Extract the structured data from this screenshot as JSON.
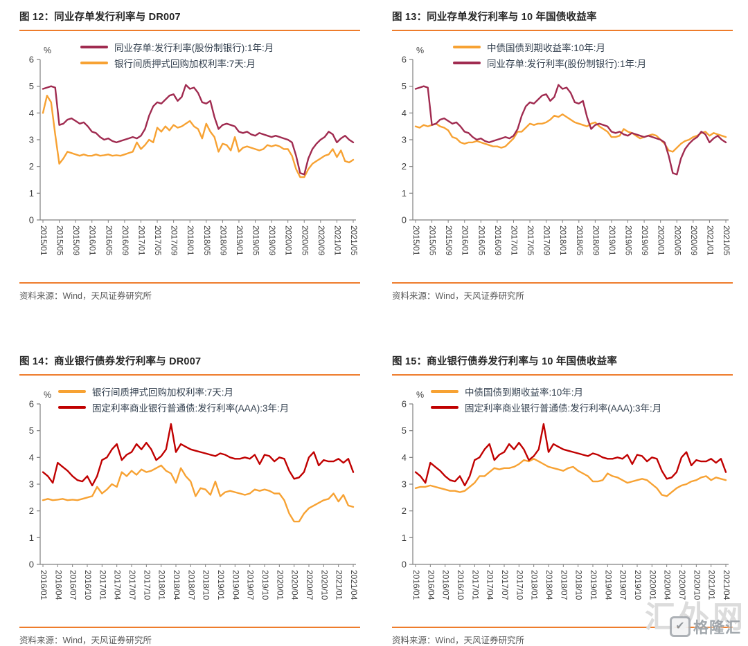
{
  "page": {
    "source_note": "资料来源：Wind，天风证券研究所",
    "watermark": {
      "site": "汇外网",
      "logo": "格隆汇"
    }
  },
  "colors": {
    "accent_orange": "#EE7C2B",
    "cd_dark_red": "#A02B50",
    "repo_orange": "#F7A233",
    "aaa_bright_red": "#C00000",
    "axis_line": "#808080",
    "axis_text": "#404040",
    "legend_text": "#33404F",
    "title_text": "#262626",
    "source_text": "#595959",
    "watermark_gray": "#DCDCDC"
  },
  "chart_data": [
    {
      "id": "fig12",
      "type": "line",
      "title": "图 12：同业存单发行利率与 DR007",
      "source": "资料来源：Wind，天风证券研究所",
      "ylabel": "%",
      "ylim": [
        0,
        6
      ],
      "yticks": [
        0,
        1,
        2,
        3,
        4,
        5,
        6
      ],
      "x_range": "2015/01-2021/05",
      "n_points": 77,
      "x_tick_interval_months": 4,
      "x_tick_labels": [
        "2015/01",
        "2015/05",
        "2015/09",
        "2016/01",
        "2016/05",
        "2016/09",
        "2017/01",
        "2017/05",
        "2017/09",
        "2018/01",
        "2018/05",
        "2018/09",
        "2019/01",
        "2019/05",
        "2019/09",
        "2020/01",
        "2020/05",
        "2020/09",
        "2021/01",
        "2021/05"
      ],
      "grid": false,
      "legend_position": "top-left",
      "series": [
        {
          "name": "同业存单:发行利率(股份制银行):1年:月",
          "color": "#A02B50",
          "z": 2,
          "values": [
            4.9,
            4.95,
            5.0,
            4.95,
            3.55,
            3.6,
            3.75,
            3.8,
            3.7,
            3.6,
            3.65,
            3.5,
            3.3,
            3.25,
            3.1,
            3.0,
            3.05,
            2.95,
            2.9,
            2.95,
            3.0,
            3.05,
            3.1,
            3.05,
            3.15,
            3.4,
            3.9,
            4.25,
            4.4,
            4.35,
            4.5,
            4.65,
            4.7,
            4.45,
            4.6,
            5.05,
            4.9,
            4.95,
            4.75,
            4.4,
            4.35,
            4.45,
            3.85,
            3.4,
            3.55,
            3.6,
            3.55,
            3.5,
            3.3,
            3.25,
            3.3,
            3.2,
            3.15,
            3.25,
            3.2,
            3.15,
            3.1,
            3.15,
            3.1,
            3.05,
            3.0,
            2.9,
            2.4,
            1.75,
            1.7,
            2.3,
            2.65,
            2.85,
            3.0,
            3.1,
            3.3,
            3.2,
            2.9,
            3.05,
            3.15,
            3.0,
            2.9
          ]
        },
        {
          "name": "银行间质押式回购加权利率:7天:月",
          "color": "#F7A233",
          "z": 1,
          "values": [
            4.0,
            4.65,
            4.4,
            3.2,
            2.1,
            2.3,
            2.55,
            2.5,
            2.45,
            2.4,
            2.45,
            2.4,
            2.4,
            2.45,
            2.4,
            2.42,
            2.45,
            2.4,
            2.42,
            2.4,
            2.45,
            2.5,
            2.55,
            2.9,
            2.65,
            2.8,
            3.0,
            2.9,
            3.45,
            3.3,
            3.5,
            3.35,
            3.55,
            3.45,
            3.5,
            3.6,
            3.7,
            3.5,
            3.4,
            3.05,
            3.6,
            3.3,
            3.1,
            2.55,
            2.85,
            2.8,
            2.6,
            3.1,
            2.55,
            2.7,
            2.75,
            2.7,
            2.65,
            2.6,
            2.65,
            2.8,
            2.75,
            2.8,
            2.75,
            2.65,
            2.65,
            2.4,
            1.9,
            1.6,
            1.6,
            1.9,
            2.1,
            2.2,
            2.3,
            2.4,
            2.45,
            2.65,
            2.35,
            2.6,
            2.2,
            2.15,
            2.25
          ]
        }
      ]
    },
    {
      "id": "fig13",
      "type": "line",
      "title": "图 13：同业存单发行利率与 10 年国债收益率",
      "source": "资料来源：Wind，天风证券研究所",
      "ylabel": "%",
      "ylim": [
        0,
        6
      ],
      "yticks": [
        0,
        1,
        2,
        3,
        4,
        5,
        6
      ],
      "x_range": "2015/01-2021/05",
      "n_points": 77,
      "x_tick_interval_months": 4,
      "x_tick_labels": [
        "2015/01",
        "2015/05",
        "2015/09",
        "2016/01",
        "2016/05",
        "2016/09",
        "2017/01",
        "2017/05",
        "2017/09",
        "2018/01",
        "2018/05",
        "2018/09",
        "2019/01",
        "2019/05",
        "2019/09",
        "2020/01",
        "2020/05",
        "2020/09",
        "2021/01",
        "2021/05"
      ],
      "grid": false,
      "legend_position": "top-left",
      "series": [
        {
          "name": "中债国债到期收益率:10年:月",
          "color": "#F7A233",
          "z": 1,
          "values": [
            3.5,
            3.45,
            3.55,
            3.5,
            3.55,
            3.6,
            3.5,
            3.45,
            3.35,
            3.1,
            3.05,
            2.9,
            2.85,
            2.9,
            2.9,
            2.95,
            2.9,
            2.85,
            2.8,
            2.75,
            2.75,
            2.7,
            2.75,
            2.9,
            3.05,
            3.3,
            3.3,
            3.45,
            3.6,
            3.55,
            3.6,
            3.6,
            3.65,
            3.75,
            3.9,
            3.85,
            3.95,
            3.85,
            3.75,
            3.65,
            3.6,
            3.55,
            3.5,
            3.6,
            3.65,
            3.5,
            3.4,
            3.3,
            3.1,
            3.1,
            3.15,
            3.4,
            3.3,
            3.25,
            3.15,
            3.05,
            3.1,
            3.15,
            3.2,
            3.15,
            3.0,
            2.85,
            2.6,
            2.55,
            2.7,
            2.85,
            2.95,
            3.0,
            3.1,
            3.15,
            3.25,
            3.3,
            3.15,
            3.25,
            3.2,
            3.15,
            3.1
          ]
        },
        {
          "name": "同业存单:发行利率(股份制银行):1年:月",
          "color": "#A02B50",
          "z": 2,
          "values": [
            4.9,
            4.95,
            5.0,
            4.95,
            3.55,
            3.6,
            3.75,
            3.8,
            3.7,
            3.6,
            3.65,
            3.5,
            3.3,
            3.25,
            3.1,
            3.0,
            3.05,
            2.95,
            2.9,
            2.95,
            3.0,
            3.05,
            3.1,
            3.05,
            3.15,
            3.4,
            3.9,
            4.25,
            4.4,
            4.35,
            4.5,
            4.65,
            4.7,
            4.45,
            4.6,
            5.05,
            4.9,
            4.95,
            4.75,
            4.4,
            4.35,
            4.45,
            3.85,
            3.4,
            3.55,
            3.6,
            3.55,
            3.5,
            3.3,
            3.25,
            3.3,
            3.2,
            3.15,
            3.25,
            3.2,
            3.15,
            3.1,
            3.15,
            3.1,
            3.05,
            3.0,
            2.9,
            2.4,
            1.75,
            1.7,
            2.3,
            2.65,
            2.85,
            3.0,
            3.1,
            3.3,
            3.2,
            2.9,
            3.05,
            3.15,
            3.0,
            2.9
          ]
        }
      ]
    },
    {
      "id": "fig14",
      "type": "line",
      "title": "图 14：商业银行债券发行利率与 DR007",
      "source": "资料来源：Wind，天风证券研究所",
      "ylabel": "%",
      "ylim": [
        0,
        6
      ],
      "yticks": [
        0,
        1,
        2,
        3,
        4,
        5,
        6
      ],
      "x_range": "2016/01-2021/04",
      "n_points": 64,
      "x_tick_interval_months": 3,
      "x_tick_labels": [
        "2016/01",
        "2016/04",
        "2016/07",
        "2016/10",
        "2017/01",
        "2017/04",
        "2017/07",
        "2017/10",
        "2018/01",
        "2018/04",
        "2018/07",
        "2018/10",
        "2019/01",
        "2019/04",
        "2019/07",
        "2019/10",
        "2020/01",
        "2020/04",
        "2020/07",
        "2020/10",
        "2021/01",
        "2021/04"
      ],
      "grid": false,
      "legend_position": "top-left",
      "series": [
        {
          "name": "银行间质押式回购加权利率:7天:月",
          "color": "#F7A233",
          "z": 1,
          "values": [
            2.4,
            2.45,
            2.4,
            2.42,
            2.45,
            2.4,
            2.42,
            2.4,
            2.45,
            2.5,
            2.55,
            2.9,
            2.65,
            2.8,
            3.0,
            2.9,
            3.45,
            3.3,
            3.5,
            3.35,
            3.55,
            3.45,
            3.5,
            3.6,
            3.7,
            3.5,
            3.4,
            3.05,
            3.6,
            3.3,
            3.1,
            2.55,
            2.85,
            2.8,
            2.6,
            3.1,
            2.55,
            2.7,
            2.75,
            2.7,
            2.65,
            2.6,
            2.65,
            2.8,
            2.75,
            2.8,
            2.75,
            2.65,
            2.65,
            2.4,
            1.9,
            1.6,
            1.6,
            1.9,
            2.1,
            2.2,
            2.3,
            2.4,
            2.45,
            2.65,
            2.35,
            2.6,
            2.2,
            2.15
          ]
        },
        {
          "name": "固定利率商业银行普通债:发行利率(AAA):3年:月",
          "color": "#C00000",
          "z": 2,
          "values": [
            3.45,
            3.3,
            3.05,
            3.8,
            3.65,
            3.5,
            3.3,
            3.15,
            3.1,
            3.3,
            2.95,
            3.3,
            3.9,
            4.0,
            4.3,
            4.5,
            3.9,
            4.1,
            4.2,
            4.5,
            4.3,
            4.55,
            4.3,
            3.9,
            4.05,
            4.3,
            5.25,
            4.2,
            4.5,
            4.4,
            4.3,
            4.25,
            4.2,
            4.15,
            4.1,
            4.05,
            4.15,
            4.1,
            4.0,
            3.95,
            3.95,
            4.0,
            3.95,
            4.1,
            3.75,
            4.1,
            4.05,
            3.85,
            4.0,
            3.95,
            3.5,
            3.2,
            3.25,
            3.45,
            4.0,
            4.2,
            3.7,
            3.9,
            3.85,
            3.85,
            3.95,
            3.8,
            3.95,
            3.45
          ]
        }
      ]
    },
    {
      "id": "fig15",
      "type": "line",
      "title": "图 15：商业银行债券发行利率与 10 年国债收益率",
      "source": "资料来源：Wind，天风证券研究所",
      "ylabel": "%",
      "ylim": [
        0,
        6
      ],
      "yticks": [
        0,
        1,
        2,
        3,
        4,
        5,
        6
      ],
      "x_range": "2016/01-2021/04",
      "n_points": 64,
      "x_tick_interval_months": 3,
      "x_tick_labels": [
        "2016/01",
        "2016/04",
        "2016/07",
        "2016/10",
        "2017/01",
        "2017/04",
        "2017/07",
        "2017/10",
        "2018/01",
        "2018/04",
        "2018/07",
        "2018/10",
        "2019/01",
        "2019/04",
        "2019/07",
        "2019/10",
        "2020/01",
        "2020/04",
        "2020/07",
        "2020/10",
        "2021/01",
        "2021/04"
      ],
      "grid": false,
      "legend_position": "top-left",
      "series": [
        {
          "name": "中债国债到期收益率:10年:月",
          "color": "#F7A233",
          "z": 1,
          "values": [
            2.85,
            2.9,
            2.9,
            2.95,
            2.9,
            2.85,
            2.8,
            2.75,
            2.75,
            2.7,
            2.75,
            2.9,
            3.05,
            3.3,
            3.3,
            3.45,
            3.6,
            3.55,
            3.6,
            3.6,
            3.65,
            3.75,
            3.9,
            3.85,
            3.95,
            3.85,
            3.75,
            3.65,
            3.6,
            3.55,
            3.5,
            3.6,
            3.65,
            3.5,
            3.4,
            3.3,
            3.1,
            3.1,
            3.15,
            3.4,
            3.3,
            3.25,
            3.15,
            3.05,
            3.1,
            3.15,
            3.2,
            3.15,
            3.0,
            2.85,
            2.6,
            2.55,
            2.7,
            2.85,
            2.95,
            3.0,
            3.1,
            3.15,
            3.25,
            3.3,
            3.15,
            3.25,
            3.2,
            3.15
          ]
        },
        {
          "name": "固定利率商业银行普通债:发行利率(AAA):3年:月",
          "color": "#C00000",
          "z": 2,
          "values": [
            3.45,
            3.3,
            3.05,
            3.8,
            3.65,
            3.5,
            3.3,
            3.15,
            3.1,
            3.3,
            2.95,
            3.3,
            3.9,
            4.0,
            4.3,
            4.5,
            3.9,
            4.1,
            4.2,
            4.5,
            4.3,
            4.55,
            4.3,
            3.9,
            4.05,
            4.3,
            5.25,
            4.2,
            4.5,
            4.4,
            4.3,
            4.25,
            4.2,
            4.15,
            4.1,
            4.05,
            4.15,
            4.1,
            4.0,
            3.95,
            3.95,
            4.0,
            3.95,
            4.1,
            3.75,
            4.1,
            4.05,
            3.85,
            4.0,
            3.95,
            3.5,
            3.2,
            3.25,
            3.45,
            4.0,
            4.2,
            3.7,
            3.9,
            3.85,
            3.85,
            3.95,
            3.8,
            3.95,
            3.45
          ]
        }
      ]
    }
  ]
}
